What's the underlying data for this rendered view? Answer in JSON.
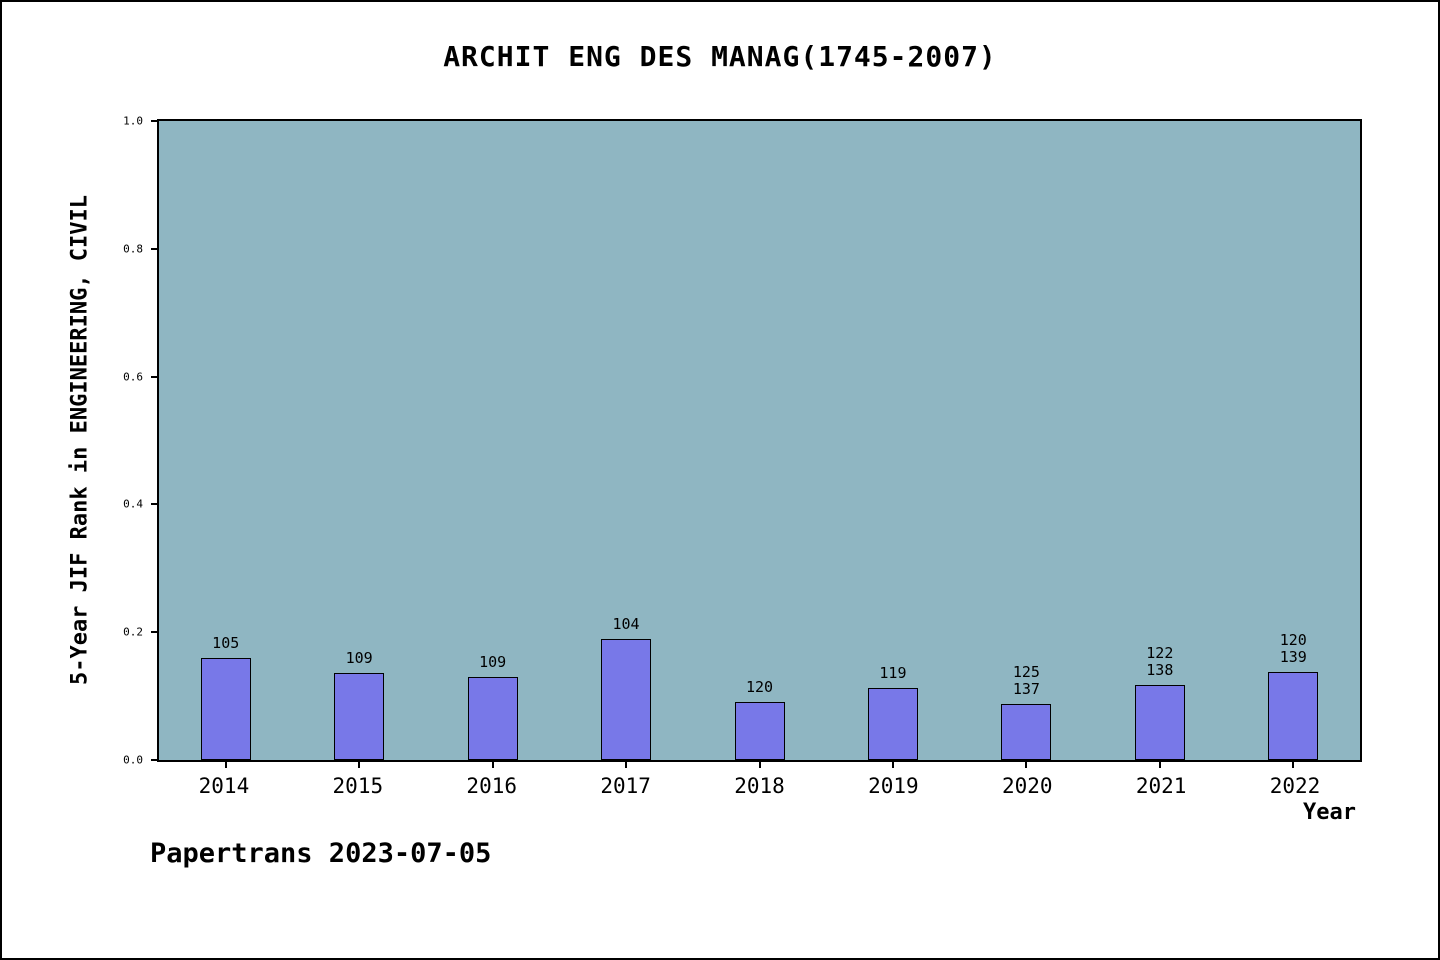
{
  "chart_data": {
    "type": "bar",
    "title": "ARCHIT ENG DES MANAG(1745-2007)",
    "xlabel": "Year",
    "ylabel": "5-Year JIF Rank in ENGINEERING, CIVIL",
    "ylim": [
      0.0,
      1.0
    ],
    "yticks": [
      0.0,
      0.2,
      0.4,
      0.6,
      0.8,
      1.0
    ],
    "categories": [
      "2014",
      "2015",
      "2016",
      "2017",
      "2018",
      "2019",
      "2020",
      "2021",
      "2022"
    ],
    "values": [
      0.16,
      0.136,
      0.13,
      0.19,
      0.091,
      0.113,
      0.088,
      0.118,
      0.138
    ],
    "bar_labels": [
      [
        "105"
      ],
      [
        "109"
      ],
      [
        "109"
      ],
      [
        "104"
      ],
      [
        "120"
      ],
      [
        "119"
      ],
      [
        "125",
        "137"
      ],
      [
        "122",
        "138"
      ],
      [
        "120",
        "139"
      ]
    ],
    "grid": false,
    "legend": null,
    "colors": {
      "bar_fill": "#7878e8",
      "bar_border": "#000000",
      "plot_background": "#8fb6c2",
      "page_background": "#ffffff",
      "text": "#000000"
    }
  },
  "footer": {
    "text": "Papertrans 2023-07-05"
  }
}
